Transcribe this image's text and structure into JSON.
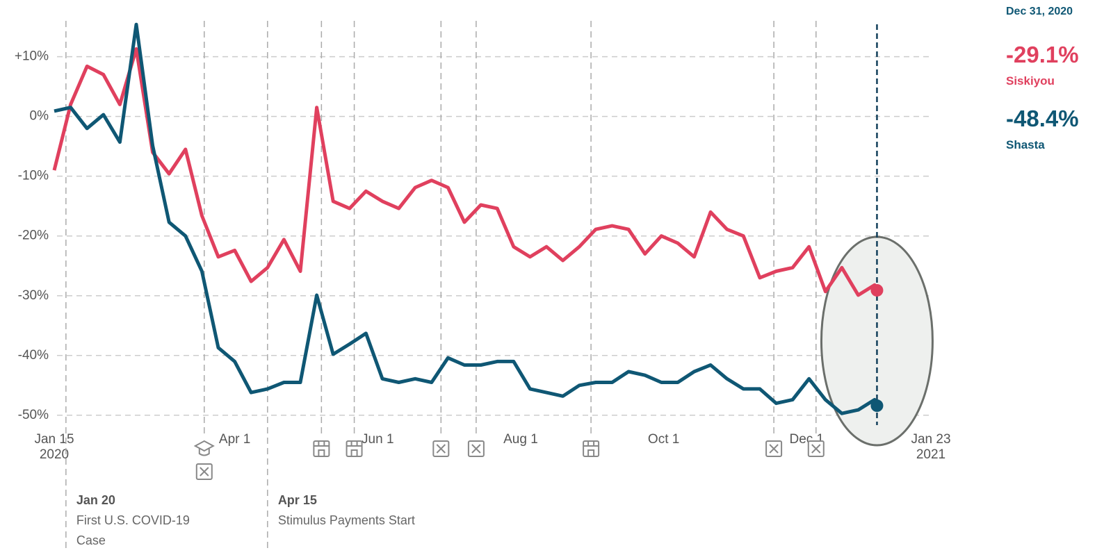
{
  "chart_data": {
    "type": "line",
    "x": [
      "2020-01-15",
      "2020-01-22",
      "2020-01-29",
      "2020-02-05",
      "2020-02-12",
      "2020-02-19",
      "2020-02-26",
      "2020-03-04",
      "2020-03-11",
      "2020-03-18",
      "2020-03-25",
      "2020-04-01",
      "2020-04-08",
      "2020-04-15",
      "2020-04-22",
      "2020-04-29",
      "2020-05-06",
      "2020-05-13",
      "2020-05-20",
      "2020-05-27",
      "2020-06-03",
      "2020-06-10",
      "2020-06-17",
      "2020-06-24",
      "2020-07-01",
      "2020-07-08",
      "2020-07-15",
      "2020-07-22",
      "2020-07-29",
      "2020-08-05",
      "2020-08-12",
      "2020-08-19",
      "2020-08-26",
      "2020-09-02",
      "2020-09-09",
      "2020-09-16",
      "2020-09-23",
      "2020-09-30",
      "2020-10-07",
      "2020-10-14",
      "2020-10-21",
      "2020-10-28",
      "2020-11-04",
      "2020-11-11",
      "2020-11-18",
      "2020-11-25",
      "2020-12-02",
      "2020-12-09",
      "2020-12-16",
      "2020-12-23",
      "2020-12-30",
      "2020-12-31"
    ],
    "series": [
      {
        "name": "Siskiyou",
        "color": "#e0405e",
        "values": [
          -9,
          2,
          8.4,
          7,
          2,
          11.3,
          -6,
          -9.6,
          -5.5,
          -16.6,
          -23.5,
          -22.4,
          -27.6,
          -25.3,
          -20.6,
          -25.9,
          1.5,
          -14.2,
          -15.4,
          -12.5,
          -14.2,
          -15.4,
          -11.9,
          -10.7,
          -11.9,
          -17.7,
          -14.8,
          -15.4,
          -21.8,
          -23.5,
          -21.8,
          -24.1,
          -21.8,
          -18.9,
          -18.3,
          -18.9,
          -23,
          -20,
          -21.2,
          -23.5,
          -16,
          -18.9,
          -20,
          -27,
          -25.9,
          -25.3,
          -21.8,
          -29.3,
          -25.3,
          -29.9,
          -28.2,
          -29.1
        ]
      },
      {
        "name": "Shasta",
        "color": "#0f5774",
        "values": [
          0.9,
          1.5,
          -2,
          0.3,
          -4.3,
          15.4,
          -4.9,
          -17.7,
          -20,
          -25.9,
          -38.7,
          -41,
          -46.2,
          -45.6,
          -44.5,
          -44.5,
          -29.9,
          -39.8,
          -38.1,
          -36.3,
          -43.9,
          -44.5,
          -43.9,
          -44.5,
          -40.4,
          -41.6,
          -41.6,
          -41,
          -41,
          -45.6,
          -46.2,
          -46.8,
          -45,
          -44.5,
          -44.5,
          -42.7,
          -43.3,
          -44.5,
          -44.5,
          -42.7,
          -41.6,
          -43.9,
          -45.6,
          -45.6,
          -48,
          -47.4,
          -43.9,
          -47.4,
          -49.7,
          -49.1,
          -47.4,
          -48.4
        ]
      }
    ],
    "xlim": [
      "2020-01-15",
      "2021-01-23"
    ],
    "xticks": [
      {
        "value": "2020-01-15",
        "label": [
          "Jan 15",
          "2020"
        ]
      },
      {
        "value": "2020-04-01",
        "label": [
          "Apr 1"
        ]
      },
      {
        "value": "2020-06-01",
        "label": [
          "Jun 1"
        ]
      },
      {
        "value": "2020-08-01",
        "label": [
          "Aug 1"
        ]
      },
      {
        "value": "2020-10-01",
        "label": [
          "Oct 1"
        ]
      },
      {
        "value": "2020-12-01",
        "label": [
          "Dec 1"
        ]
      },
      {
        "value": "2021-01-23",
        "label": [
          "Jan 23",
          "2021"
        ]
      }
    ],
    "ylim": [
      -52,
      16
    ],
    "yticks": [
      {
        "value": 10,
        "label": "+10%"
      },
      {
        "value": 0,
        "label": "0%"
      },
      {
        "value": -10,
        "label": "-10%"
      },
      {
        "value": -20,
        "label": "-20%"
      },
      {
        "value": -30,
        "label": "-30%"
      },
      {
        "value": -40,
        "label": "-40%"
      },
      {
        "value": -50,
        "label": "-50%"
      }
    ],
    "grid": true,
    "events": [
      {
        "date": "2020-01-20",
        "label": "Jan 20",
        "text": "First U.S. COVID-19 Case"
      },
      {
        "date": "2020-03-19"
      },
      {
        "date": "2020-04-15",
        "label": "Apr 15",
        "text": "Stimulus Payments Start"
      },
      {
        "date": "2020-05-08"
      },
      {
        "date": "2020-05-22"
      },
      {
        "date": "2020-06-28"
      },
      {
        "date": "2020-07-13"
      },
      {
        "date": "2020-08-31"
      },
      {
        "date": "2020-11-17"
      },
      {
        "date": "2020-12-05"
      }
    ],
    "cursor": {
      "date": "2020-12-31",
      "title": "Dec 31, 2020",
      "readouts": [
        {
          "value": -29.1,
          "label": "-29.1%"
        },
        {
          "value": -48.4,
          "label": "-48.4%"
        }
      ]
    }
  }
}
